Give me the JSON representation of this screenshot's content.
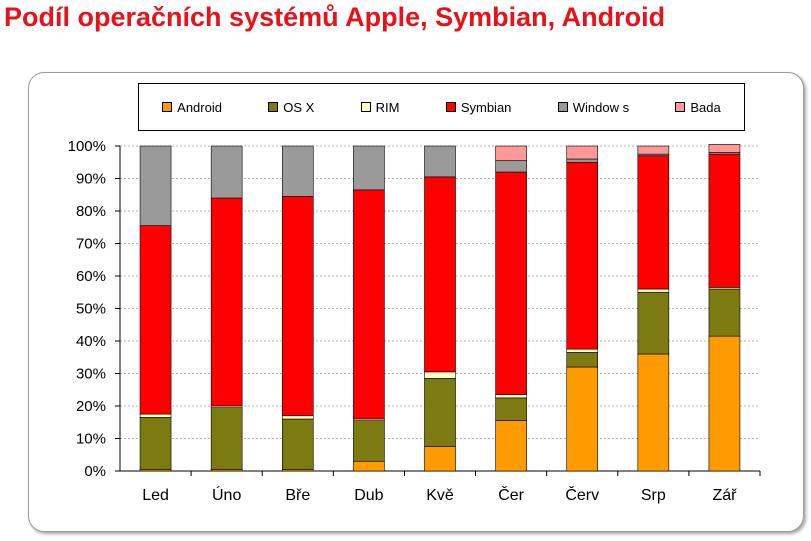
{
  "title": "Podíl operačních systémů Apple, Symbian, Android",
  "chart_data": {
    "type": "bar",
    "stacked": true,
    "percent": true,
    "categories": [
      "Led",
      "Úno",
      "Bře",
      "Dub",
      "Kvě",
      "Čer",
      "Červ",
      "Srp",
      "Zář"
    ],
    "series": [
      {
        "name": "Android",
        "color": "#ff9a00",
        "values": [
          0.5,
          0.5,
          0.5,
          3,
          7.5,
          15.5,
          32,
          36,
          41.5
        ]
      },
      {
        "name": "OS X",
        "color": "#7b7b12",
        "values": [
          16,
          19,
          15.5,
          12.5,
          21,
          7,
          4.5,
          19,
          14.5
        ]
      },
      {
        "name": "RIM",
        "color": "#ffffc8",
        "values": [
          1,
          0.5,
          1,
          0.5,
          2,
          1,
          1,
          1,
          0.5
        ]
      },
      {
        "name": "Symbian",
        "color": "#ff0000",
        "values": [
          58,
          64,
          67.5,
          70.5,
          60,
          68.5,
          57.5,
          41,
          41
        ]
      },
      {
        "name": "Window s",
        "color": "#9a9a9a",
        "values": [
          24.5,
          16,
          15.5,
          13.5,
          9.5,
          3.5,
          1,
          0.5,
          0.5
        ]
      },
      {
        "name": "Bada",
        "color": "#ff9999",
        "values": [
          0,
          0,
          0,
          0,
          0,
          4.5,
          4,
          2.5,
          2.5
        ]
      }
    ],
    "yticks": [
      "0%",
      "10%",
      "20%",
      "30%",
      "40%",
      "50%",
      "60%",
      "70%",
      "80%",
      "90%",
      "100%"
    ],
    "ylim": [
      0,
      100
    ],
    "legend_position": "top",
    "grid": true
  }
}
